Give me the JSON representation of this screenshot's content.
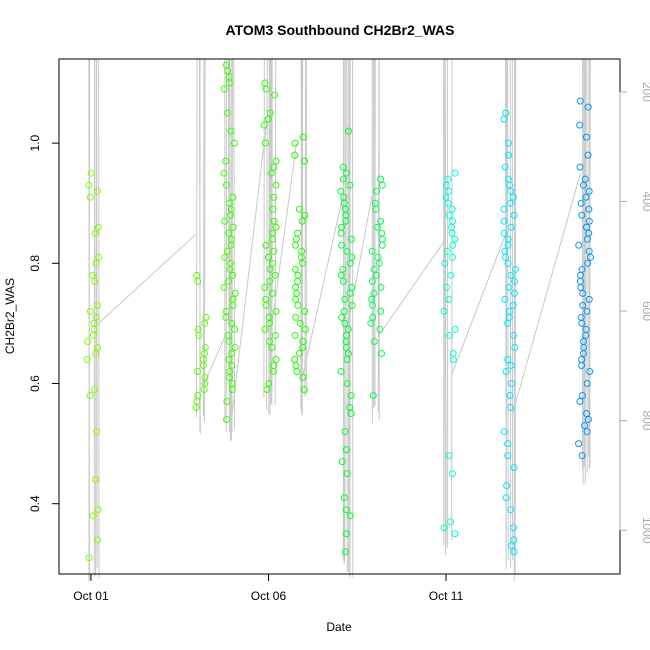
{
  "chart_data": {
    "type": "scatter",
    "title": "ATOM3 Southbound CH2Br2_WAS",
    "xlabel": "Date",
    "ylabel": "CH2Br2_WAS",
    "x_axis": {
      "unit": "days since Oct 01",
      "range": [
        -0.9,
        14.9
      ],
      "ticks": [
        {
          "value": 0,
          "label": "Oct 01"
        },
        {
          "value": 5,
          "label": "Oct 06"
        },
        {
          "value": 10,
          "label": "Oct 11"
        }
      ]
    },
    "y_axis": {
      "range": [
        0.283,
        1.14
      ],
      "ticks": [
        {
          "value": 0.4,
          "label": "0.4"
        },
        {
          "value": 0.6,
          "label": "0.6"
        },
        {
          "value": 0.8,
          "label": "0.8"
        },
        {
          "value": 1.0,
          "label": "1.0"
        }
      ]
    },
    "secondary_y_axis": {
      "label": "",
      "range": [
        1080,
        140
      ],
      "ticks": [
        {
          "value": 200,
          "label": "200"
        },
        {
          "value": 400,
          "label": "400"
        },
        {
          "value": 600,
          "label": "600"
        },
        {
          "value": 800,
          "label": "800"
        },
        {
          "value": 1000,
          "label": "1000"
        }
      ],
      "color": "#aaaaaa"
    },
    "colors": {
      "line": "#c8c8c8",
      "axis": "#000000",
      "secondary_axis": "#aaaaaa",
      "clusters": [
        "#80ff00",
        "#40ff00",
        "#00ff1a",
        "#00ff40",
        "#00ff80",
        "#00ff66",
        "#00ffd0",
        "#00d8ff",
        "#0090ff"
      ]
    },
    "grid": false,
    "legend": "none",
    "clusters": [
      {
        "x": 0.05,
        "color": "#80ff00",
        "y": [
          0.95,
          0.93,
          0.92,
          0.91,
          0.86,
          0.85,
          0.81,
          0.8,
          0.78,
          0.77,
          0.73,
          0.72,
          0.71,
          0.7,
          0.69,
          0.68,
          0.67,
          0.66,
          0.65,
          0.64,
          0.59,
          0.58,
          0.52,
          0.44,
          0.39,
          0.38,
          0.34,
          0.31
        ]
      },
      {
        "x": 3.1,
        "color": "#5cff00",
        "y": [
          0.78,
          0.77,
          0.71,
          0.7,
          0.69,
          0.68,
          0.66,
          0.65,
          0.64,
          0.63,
          0.62,
          0.61,
          0.6,
          0.59,
          0.58,
          0.57,
          0.56
        ]
      },
      {
        "x": 3.9,
        "color": "#3cff00",
        "y": [
          1.13,
          1.12,
          1.11,
          1.1,
          1.09,
          1.05,
          1.02,
          1.0,
          0.97,
          0.95,
          0.93,
          0.91,
          0.9,
          0.89,
          0.88,
          0.87,
          0.86,
          0.85,
          0.84,
          0.83,
          0.82,
          0.81,
          0.8,
          0.79,
          0.78,
          0.77,
          0.76,
          0.75,
          0.74,
          0.73,
          0.72,
          0.71,
          0.7,
          0.69,
          0.68,
          0.67,
          0.66,
          0.65,
          0.64,
          0.63,
          0.62,
          0.61,
          0.6,
          0.59,
          0.57,
          0.54
        ]
      },
      {
        "x": 5.05,
        "color": "#2dff00",
        "y": [
          1.1,
          1.09,
          1.08,
          1.05,
          1.04,
          1.03,
          1.0,
          0.97,
          0.96,
          0.95,
          0.93,
          0.91,
          0.89,
          0.87,
          0.86,
          0.85,
          0.84,
          0.83,
          0.82,
          0.81,
          0.8,
          0.79,
          0.78,
          0.77,
          0.76,
          0.75,
          0.74,
          0.73,
          0.72,
          0.71,
          0.7,
          0.69,
          0.68,
          0.67,
          0.66,
          0.64,
          0.63,
          0.62,
          0.6,
          0.59
        ]
      },
      {
        "x": 5.9,
        "color": "#1dff00",
        "y": [
          1.01,
          1.0,
          0.98,
          0.97,
          0.89,
          0.88,
          0.87,
          0.85,
          0.84,
          0.83,
          0.82,
          0.81,
          0.8,
          0.79,
          0.78,
          0.77,
          0.76,
          0.75,
          0.74,
          0.73,
          0.72,
          0.71,
          0.7,
          0.69,
          0.68,
          0.67,
          0.66,
          0.65,
          0.64,
          0.63,
          0.62,
          0.61,
          0.59
        ]
      },
      {
        "x": 7.2,
        "color": "#00ff30",
        "y": [
          1.02,
          0.96,
          0.95,
          0.94,
          0.93,
          0.92,
          0.91,
          0.9,
          0.89,
          0.88,
          0.87,
          0.86,
          0.85,
          0.84,
          0.83,
          0.82,
          0.81,
          0.8,
          0.79,
          0.78,
          0.77,
          0.76,
          0.75,
          0.74,
          0.73,
          0.72,
          0.71,
          0.7,
          0.69,
          0.68,
          0.67,
          0.66,
          0.65,
          0.64,
          0.62,
          0.6,
          0.58,
          0.56,
          0.55,
          0.52,
          0.49,
          0.47,
          0.45,
          0.41,
          0.39,
          0.38,
          0.35,
          0.32
        ]
      },
      {
        "x": 8.05,
        "color": "#00ff50",
        "y": [
          0.94,
          0.93,
          0.92,
          0.9,
          0.89,
          0.87,
          0.86,
          0.85,
          0.84,
          0.83,
          0.82,
          0.81,
          0.8,
          0.79,
          0.78,
          0.77,
          0.76,
          0.75,
          0.74,
          0.73,
          0.72,
          0.71,
          0.7,
          0.69,
          0.67,
          0.65,
          0.58
        ]
      },
      {
        "x": 10.1,
        "color": "#00ffd0",
        "y": [
          0.95,
          0.94,
          0.93,
          0.92,
          0.91,
          0.9,
          0.89,
          0.88,
          0.87,
          0.86,
          0.85,
          0.84,
          0.83,
          0.82,
          0.81,
          0.8,
          0.78,
          0.76,
          0.74,
          0.72,
          0.69,
          0.68,
          0.65,
          0.64,
          0.48,
          0.45,
          0.37,
          0.36,
          0.35
        ]
      },
      {
        "x": 11.8,
        "color": "#00e8ff",
        "y": [
          1.05,
          1.04,
          1.0,
          0.98,
          0.96,
          0.94,
          0.93,
          0.92,
          0.91,
          0.9,
          0.89,
          0.88,
          0.87,
          0.86,
          0.85,
          0.84,
          0.83,
          0.82,
          0.81,
          0.8,
          0.79,
          0.78,
          0.77,
          0.76,
          0.75,
          0.74,
          0.73,
          0.72,
          0.71,
          0.7,
          0.68,
          0.66,
          0.64,
          0.63,
          0.62,
          0.6,
          0.58,
          0.56,
          0.52,
          0.5,
          0.48,
          0.46,
          0.43,
          0.41,
          0.39,
          0.36,
          0.34,
          0.33,
          0.32
        ]
      },
      {
        "x": 13.9,
        "color": "#0098ff",
        "y": [
          1.07,
          1.06,
          1.03,
          1.01,
          0.98,
          0.96,
          0.94,
          0.93,
          0.92,
          0.91,
          0.9,
          0.89,
          0.88,
          0.87,
          0.86,
          0.85,
          0.84,
          0.83,
          0.82,
          0.81,
          0.8,
          0.79,
          0.78,
          0.77,
          0.76,
          0.75,
          0.74,
          0.73,
          0.72,
          0.71,
          0.7,
          0.69,
          0.68,
          0.67,
          0.66,
          0.65,
          0.64,
          0.63,
          0.62,
          0.6,
          0.58,
          0.57,
          0.55,
          0.54,
          0.53,
          0.52,
          0.5,
          0.48
        ]
      }
    ]
  }
}
